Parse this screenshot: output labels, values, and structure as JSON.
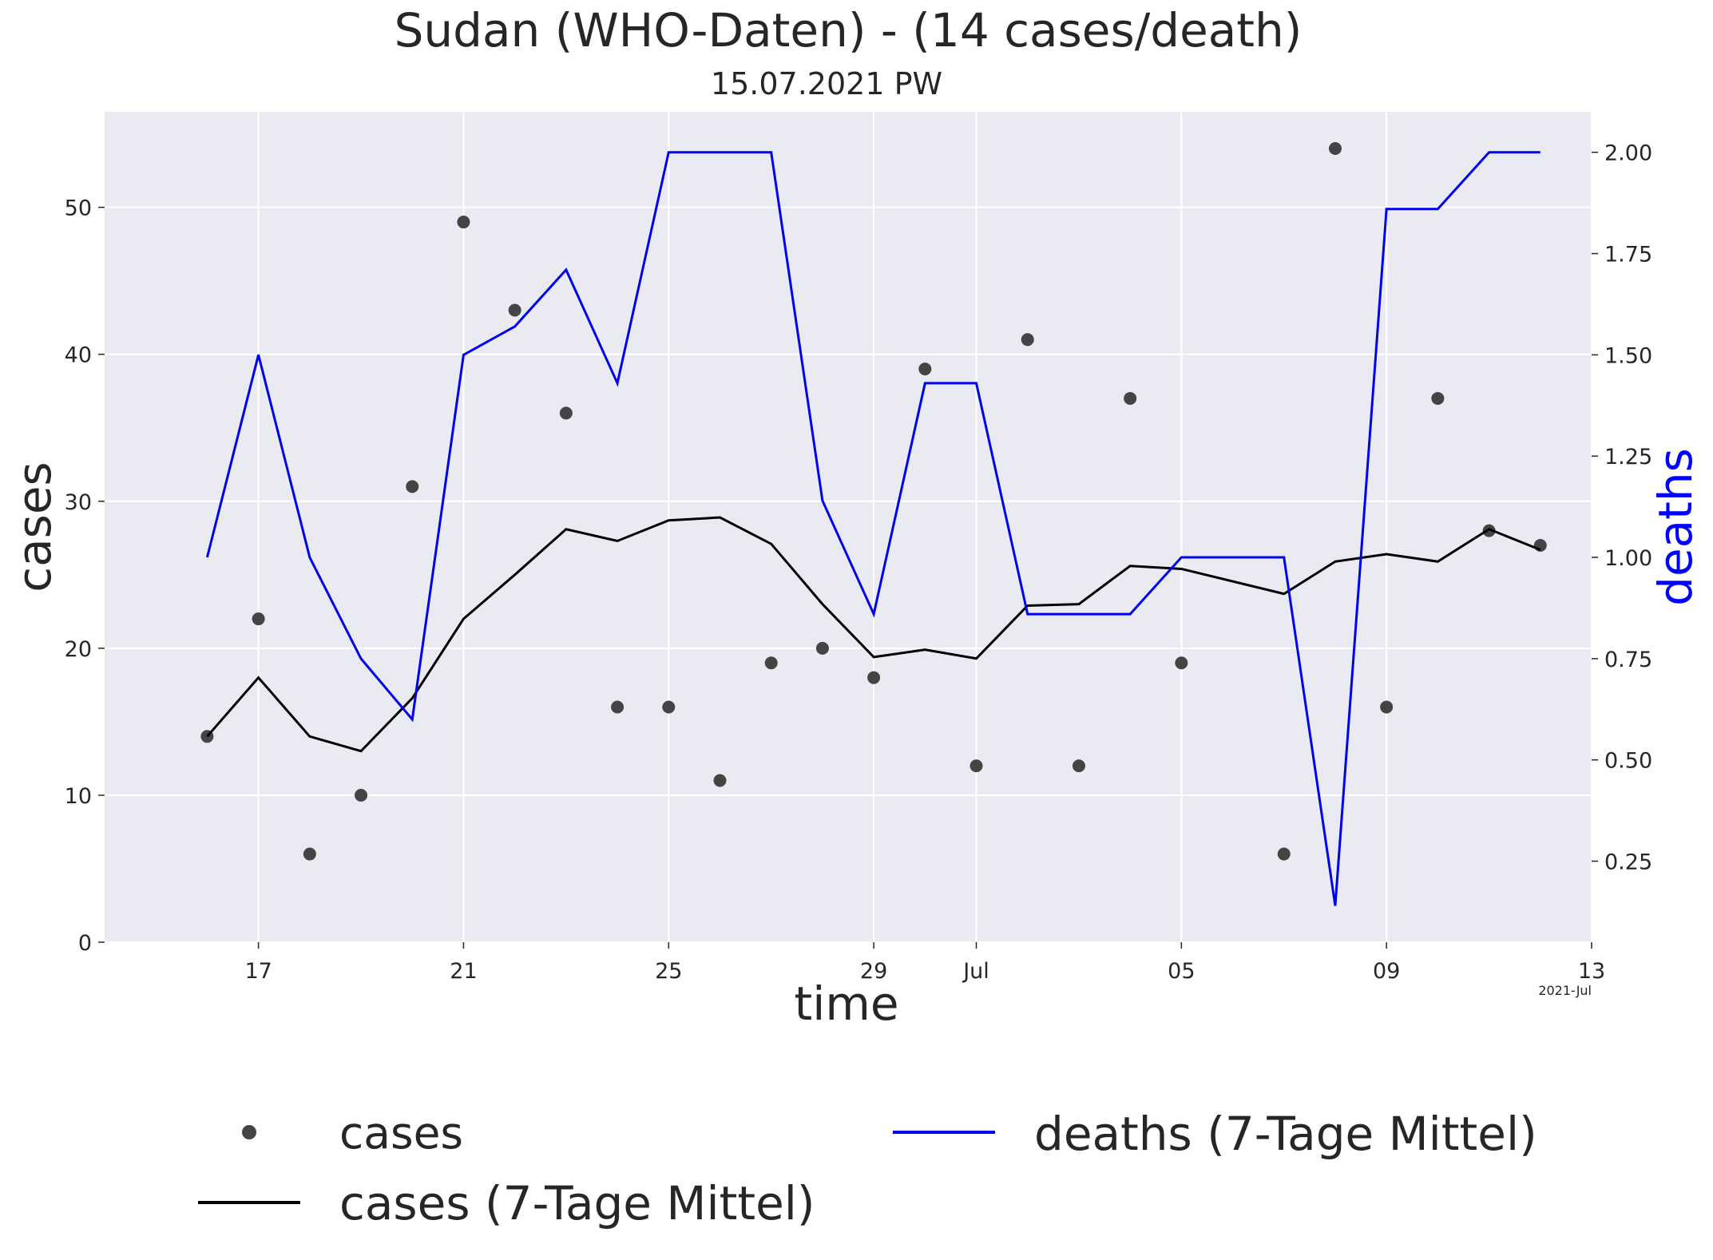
{
  "title": "Sudan (WHO-Daten) - (14 cases/death)",
  "subtitle": "15.07.2021 PW",
  "xlabel": "time",
  "ylabel_left": "cases",
  "ylabel_right": "deaths",
  "x_year_label": "2021-Jul",
  "colors": {
    "plot_background": "#eaeaf2",
    "grid": "#ffffff",
    "cases_points": "#444444",
    "cases_avg_line": "#000000",
    "deaths_avg_line": "#0000ee",
    "deaths_label": "#0000ff"
  },
  "legend": [
    {
      "label": "cases",
      "marker": "dot"
    },
    {
      "label": "cases (7-Tage Mittel)",
      "marker": "line"
    },
    {
      "label": "deaths (7-Tage Mittel)",
      "marker": "line"
    }
  ],
  "chart_data": {
    "type": "line",
    "x_start_date": "2021-06-16",
    "x": [
      "2021-06-16",
      "2021-06-17",
      "2021-06-18",
      "2021-06-19",
      "2021-06-20",
      "2021-06-21",
      "2021-06-22",
      "2021-06-23",
      "2021-06-24",
      "2021-06-25",
      "2021-06-26",
      "2021-06-27",
      "2021-06-28",
      "2021-06-29",
      "2021-06-30",
      "2021-07-01",
      "2021-07-02",
      "2021-07-03",
      "2021-07-04",
      "2021-07-05",
      "2021-07-06",
      "2021-07-07",
      "2021-07-08",
      "2021-07-09",
      "2021-07-10",
      "2021-07-11",
      "2021-07-12"
    ],
    "x_ticks": [
      {
        "date": "2021-06-17",
        "label": "17"
      },
      {
        "date": "2021-06-21",
        "label": "21"
      },
      {
        "date": "2021-06-25",
        "label": "25"
      },
      {
        "date": "2021-06-29",
        "label": "29"
      },
      {
        "date": "2021-07-01",
        "label": "Jul"
      },
      {
        "date": "2021-07-05",
        "label": "05"
      },
      {
        "date": "2021-07-09",
        "label": "09"
      },
      {
        "date": "2021-07-13",
        "label": "13"
      }
    ],
    "xlim": [
      "2021-06-14",
      "2021-07-13"
    ],
    "left_axis": {
      "label": "cases",
      "ylim": [
        0,
        56.5
      ],
      "ticks": [
        0,
        10,
        20,
        30,
        40,
        50
      ]
    },
    "right_axis": {
      "label": "deaths",
      "ylim": [
        0.05,
        2.1
      ],
      "ticks": [
        "0.25",
        "0.50",
        "0.75",
        "1.00",
        "1.25",
        "1.50",
        "1.75",
        "2.00"
      ]
    },
    "grid": true,
    "legend_position": "bottom",
    "series": [
      {
        "name": "cases",
        "type": "scatter",
        "axis": "left",
        "values": [
          14,
          22,
          6,
          10,
          31,
          49,
          43,
          36,
          16,
          16,
          11,
          19,
          20,
          18,
          39,
          12,
          41,
          12,
          37,
          19,
          null,
          6,
          54,
          16,
          37,
          28,
          27
        ]
      },
      {
        "name": "cases (7-Tage Mittel)",
        "type": "line",
        "axis": "left",
        "values": [
          14,
          18,
          14,
          13,
          16.6,
          22,
          25,
          28.1,
          27.3,
          28.7,
          28.9,
          27.1,
          23,
          19.4,
          19.9,
          19.3,
          22.9,
          23,
          25.6,
          25.4,
          null,
          23.7,
          25.9,
          26.4,
          25.9,
          28.1,
          26.7
        ]
      },
      {
        "name": "deaths (7-Tage Mittel)",
        "type": "line",
        "axis": "right",
        "values": [
          1.0,
          1.5,
          1.0,
          0.75,
          0.6,
          1.5,
          1.57,
          1.71,
          1.43,
          2.0,
          2.0,
          2.0,
          1.14,
          0.86,
          1.43,
          1.43,
          0.86,
          0.86,
          0.86,
          1.0,
          null,
          1.0,
          0.14,
          1.86,
          1.86,
          2.0,
          2.0
        ]
      }
    ]
  }
}
